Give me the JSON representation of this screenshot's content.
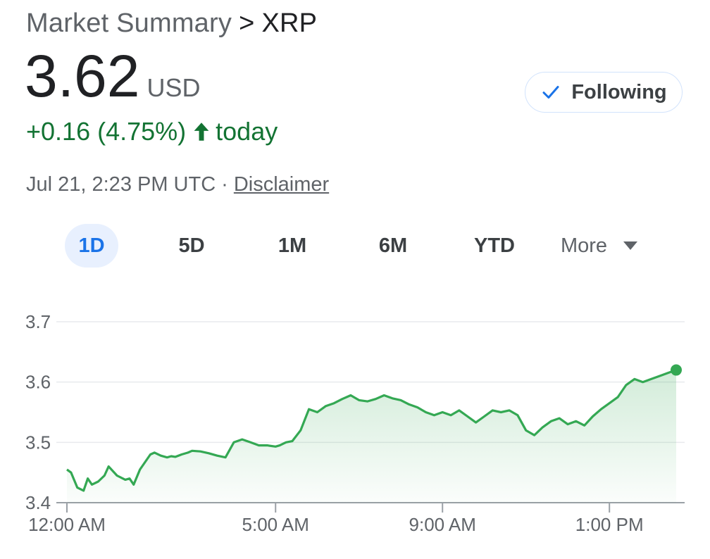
{
  "header": {
    "breadcrumb_root": "Market Summary",
    "breadcrumb_sep": ">",
    "symbol": "XRP"
  },
  "quote": {
    "price": "3.62",
    "currency": "USD",
    "change": "+0.16 (4.75%)",
    "change_period": "today",
    "timestamp": "Jul 21, 2:23 PM UTC",
    "separator": "·",
    "disclaimer_label": "Disclaimer"
  },
  "follow_button": {
    "label": "Following",
    "icon": "check-icon"
  },
  "range_tabs": [
    {
      "label": "1D",
      "active": true
    },
    {
      "label": "5D",
      "active": false
    },
    {
      "label": "1M",
      "active": false
    },
    {
      "label": "6M",
      "active": false
    },
    {
      "label": "YTD",
      "active": false
    },
    {
      "label": "More",
      "active": false,
      "icon": "caret-down-icon"
    }
  ],
  "colors": {
    "positive": "#137333",
    "line": "#34a853",
    "active_tab_bg": "#e8f0fe",
    "active_tab_text": "#1a73e8"
  },
  "chart_data": {
    "type": "area",
    "title": "",
    "xlabel": "",
    "ylabel": "",
    "ylim": [
      3.4,
      3.7
    ],
    "yticks": [
      "3.7",
      "3.6",
      "3.5",
      "3.4"
    ],
    "xticks": [
      {
        "label": "12:00 AM",
        "hour": 0
      },
      {
        "label": "5:00 AM",
        "hour": 5
      },
      {
        "label": "9:00 AM",
        "hour": 9
      },
      {
        "label": "1:00 PM",
        "hour": 13
      }
    ],
    "xlim_hours": [
      0,
      14.6
    ],
    "grid": true,
    "series": [
      {
        "x_hours": [
          0,
          0.1,
          0.25,
          0.4,
          0.5,
          0.6,
          0.75,
          0.9,
          1.0,
          1.2,
          1.4,
          1.5,
          1.6,
          1.75,
          1.9,
          2.0,
          2.1,
          2.25,
          2.4,
          2.5,
          2.6,
          2.75,
          2.9,
          3.0,
          3.2,
          3.4,
          3.6,
          3.8,
          4.0,
          4.2,
          4.4,
          4.6,
          4.8,
          5.0,
          5.1,
          5.25,
          5.4,
          5.6,
          5.8,
          6.0,
          6.2,
          6.4,
          6.6,
          6.8,
          7.0,
          7.2,
          7.4,
          7.6,
          7.8,
          8.0,
          8.2,
          8.4,
          8.6,
          8.8,
          9.0,
          9.2,
          9.4,
          9.6,
          9.8,
          10.0,
          10.2,
          10.4,
          10.6,
          10.8,
          11.0,
          11.2,
          11.4,
          11.6,
          11.8,
          12.0,
          12.2,
          12.4,
          12.6,
          12.8,
          13.0,
          13.2,
          13.4,
          13.6,
          13.8,
          14.0,
          14.2,
          14.4,
          14.6
        ],
        "values": [
          3.455,
          3.45,
          3.425,
          3.42,
          3.44,
          3.43,
          3.435,
          3.445,
          3.46,
          3.445,
          3.438,
          3.44,
          3.43,
          3.455,
          3.47,
          3.48,
          3.483,
          3.478,
          3.475,
          3.477,
          3.476,
          3.48,
          3.483,
          3.486,
          3.485,
          3.482,
          3.478,
          3.475,
          3.5,
          3.505,
          3.5,
          3.495,
          3.495,
          3.493,
          3.495,
          3.5,
          3.502,
          3.52,
          3.555,
          3.55,
          3.56,
          3.565,
          3.572,
          3.578,
          3.57,
          3.568,
          3.572,
          3.578,
          3.573,
          3.57,
          3.563,
          3.558,
          3.55,
          3.545,
          3.55,
          3.545,
          3.553,
          3.543,
          3.533,
          3.543,
          3.553,
          3.55,
          3.553,
          3.545,
          3.52,
          3.512,
          3.525,
          3.535,
          3.54,
          3.53,
          3.535,
          3.528,
          3.543,
          3.555,
          3.565,
          3.575,
          3.595,
          3.605,
          3.6,
          3.605,
          3.61,
          3.615,
          3.62
        ]
      }
    ],
    "last_point_marker": true
  }
}
